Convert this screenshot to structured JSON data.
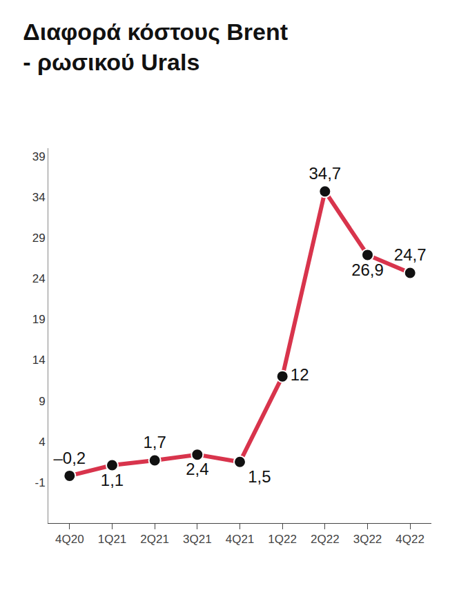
{
  "chart_data": {
    "type": "line",
    "title": "Διαφορά κόστους Brent - ρωσικού Urals",
    "categories": [
      "4Q20",
      "1Q21",
      "2Q21",
      "3Q21",
      "4Q21",
      "1Q22",
      "2Q22",
      "3Q22",
      "4Q22"
    ],
    "values": [
      -0.2,
      1.1,
      1.7,
      2.4,
      1.5,
      12,
      34.7,
      26.9,
      24.7
    ],
    "value_labels": [
      "–0,2",
      "1,1",
      "1,7",
      "2,4",
      "1,5",
      "12",
      "34,7",
      "26,9",
      "24,7"
    ],
    "color": "#d8344c",
    "marker": "circle",
    "ylim": [
      -6,
      40
    ],
    "yticks": [
      -1,
      4,
      9,
      14,
      19,
      24,
      29,
      34,
      39
    ],
    "grid": false,
    "data_labels": true
  }
}
